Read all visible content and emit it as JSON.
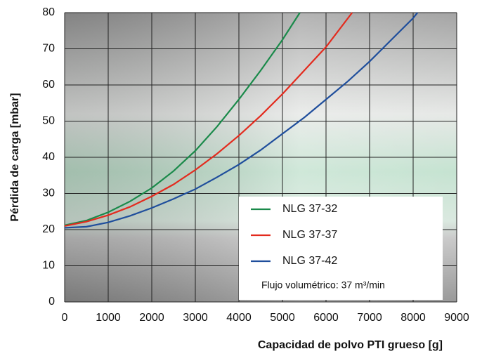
{
  "chart_data": {
    "type": "line",
    "x_label": "Capacidad de polvo PTI grueso [g]",
    "y_label": "Pérdida de carga [mbar]",
    "annotation": "Flujo volumétrico: 37 m³/min",
    "xlim": [
      0,
      9000
    ],
    "xticks": [
      0,
      1000,
      2000,
      3000,
      4000,
      5000,
      6000,
      7000,
      8000,
      9000
    ],
    "ylim": [
      0,
      80
    ],
    "yticks": [
      0,
      10,
      20,
      30,
      40,
      50,
      60,
      70,
      80
    ],
    "grid": true,
    "legend": "lower right",
    "series": [
      {
        "name": "NLG 37-32",
        "color": "#1a8a4a",
        "x": [
          0,
          500,
          1000,
          1500,
          2000,
          2500,
          3000,
          3500,
          4000,
          4500,
          5000,
          5400
        ],
        "values": [
          21.2,
          22.5,
          24.8,
          27.8,
          31.5,
          36.2,
          41.8,
          48.5,
          56,
          64,
          72.5,
          80
        ]
      },
      {
        "name": "NLG 37-37",
        "color": "#e32b1e",
        "x": [
          0,
          500,
          1000,
          1500,
          2000,
          2500,
          3000,
          3500,
          4000,
          4500,
          5000,
          5500,
          6000,
          6600
        ],
        "values": [
          21,
          22.2,
          24,
          26.3,
          29.2,
          32.5,
          36.5,
          41,
          46,
          51.5,
          57.5,
          64,
          70.5,
          80
        ]
      },
      {
        "name": "NLG 37-42",
        "color": "#1f4e9c",
        "x": [
          0,
          500,
          1000,
          1500,
          2000,
          2500,
          3000,
          3500,
          4000,
          4500,
          5000,
          5500,
          6000,
          6500,
          7000,
          7500,
          8000,
          8100
        ],
        "values": [
          20.5,
          20.8,
          22,
          23.8,
          26,
          28.5,
          31.2,
          34.5,
          38,
          42,
          46.5,
          51,
          56,
          61,
          66.5,
          72.5,
          78.5,
          80
        ]
      }
    ]
  }
}
